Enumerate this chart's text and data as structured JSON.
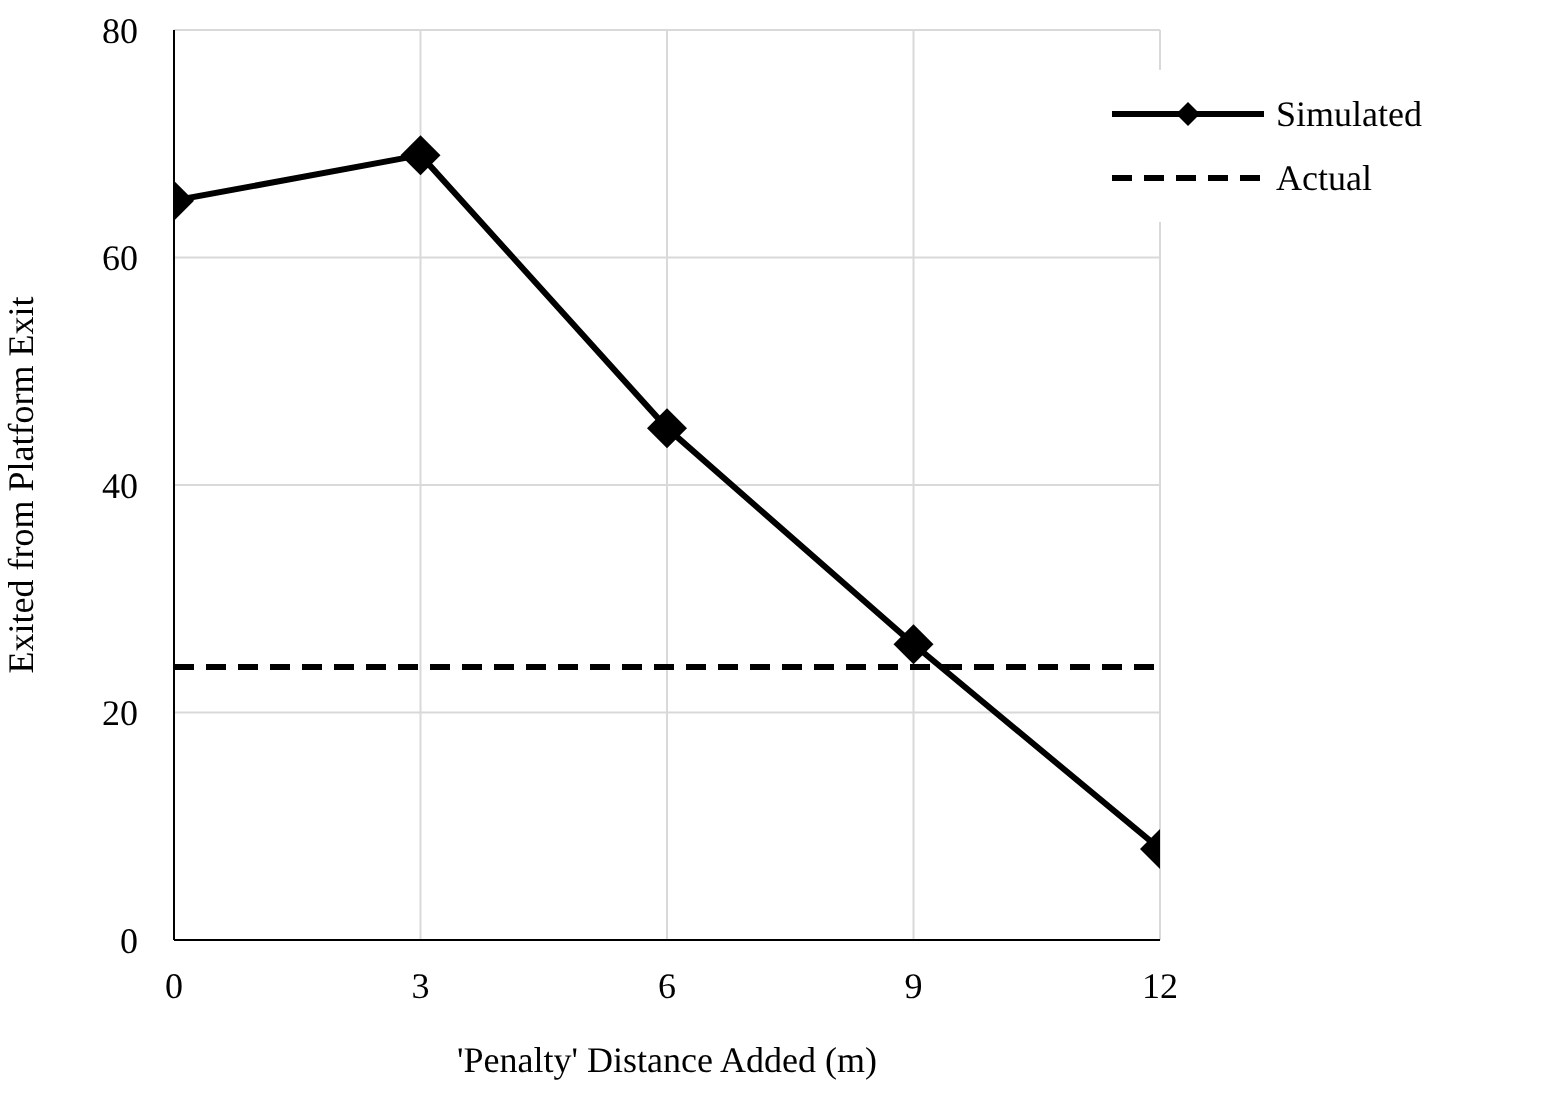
{
  "chart_data": {
    "type": "line",
    "xlabel": "'Penalty' Distance Added  (m)",
    "ylabel": "Exited from Platform Exit",
    "xlim": [
      0,
      12
    ],
    "xticks": [
      0,
      3,
      6,
      9,
      12
    ],
    "ylim": [
      0,
      80
    ],
    "yticks": [
      0,
      20,
      40,
      60,
      80
    ],
    "grid": true,
    "legend": "top right",
    "series": [
      {
        "name": "Simulated",
        "color": "#000000",
        "x": [
          0,
          3,
          6,
          9,
          12
        ],
        "values": [
          65,
          69,
          45,
          26,
          8
        ],
        "marker": "diamond",
        "line_style": "solid"
      },
      {
        "name": "Actual",
        "color": "#000000",
        "x": [
          0,
          12
        ],
        "values": [
          24,
          24
        ],
        "marker": "none",
        "line_style": "dashed"
      }
    ]
  }
}
